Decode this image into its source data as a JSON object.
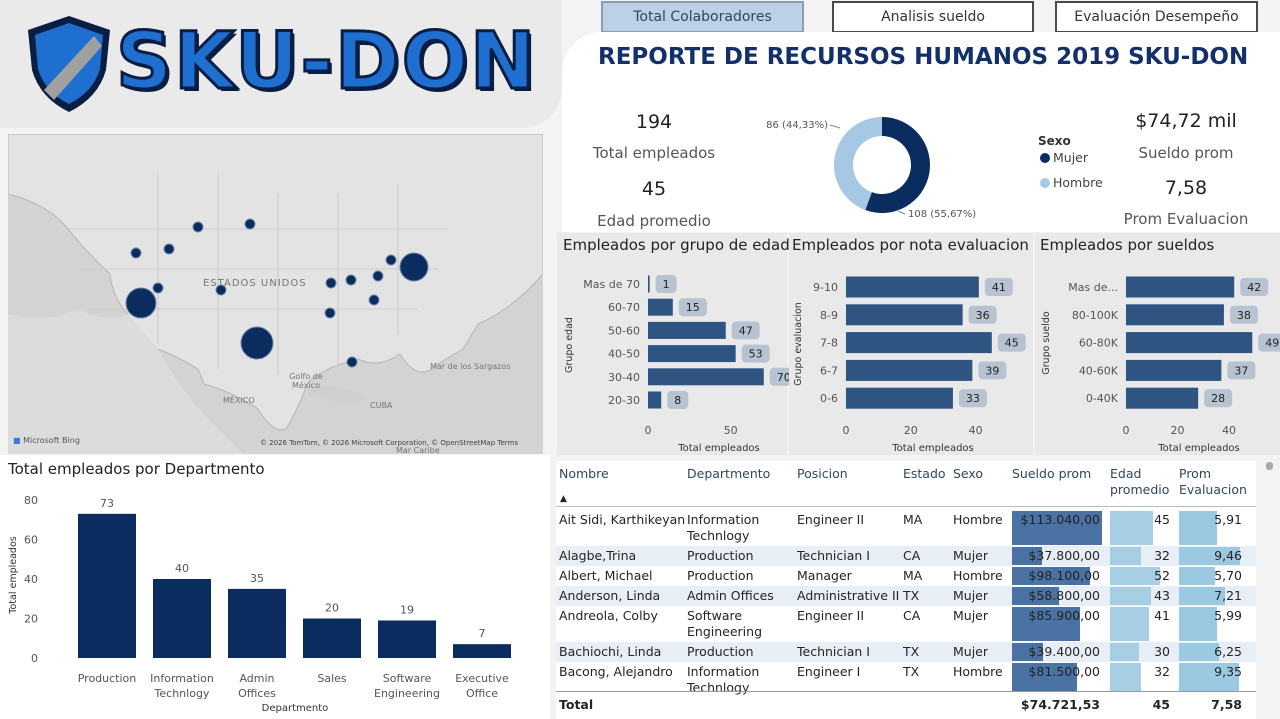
{
  "brand": {
    "logo_text": "SKU-DON"
  },
  "tabs": [
    "Total Colaboradores",
    "Analisis sueldo",
    "Evaluación Desempeño"
  ],
  "title": "REPORTE DE RECURSOS HUMANOS 2019 SKU-DON",
  "kpis": {
    "total_empleados": {
      "value": "194",
      "label": "Total empleados"
    },
    "edad_promedio": {
      "value": "45",
      "label": "Edad promedio"
    },
    "sueldo_prom": {
      "value": "$74,72 mil",
      "label": "Sueldo prom"
    },
    "prom_evaluacion": {
      "value": "7,58",
      "label": "Prom Evaluacion"
    }
  },
  "colors": {
    "dark": "#0b2c5f",
    "mid": "#2e5482",
    "light": "#a7c8e4",
    "light2": "#9bc9e2",
    "label_bg": "#b7c3d0"
  },
  "map": {
    "labels": [
      "ESTADOS UNIDOS",
      "Golfo de México",
      "MÉXICO",
      "CUBA",
      "Mar de los Sargazos",
      "Mar Caribe"
    ],
    "credit": "© 2026 TomTom, © 2026 Microsoft Corporation, © OpenStreetMap   Terms",
    "bing": "Microsoft Bing"
  },
  "chart_data": [
    {
      "id": "sexo",
      "type": "pie",
      "legend_title": "Sexo",
      "categories": [
        "Mujer",
        "Hombre"
      ],
      "values": [
        108,
        86
      ],
      "labels": [
        "108 (55,67%)",
        "86 (44,33%)"
      ],
      "colors": [
        "#0b2c5f",
        "#a7c8e4"
      ]
    },
    {
      "id": "edad",
      "type": "bar",
      "orientation": "horizontal",
      "title": "Empleados por grupo de edad",
      "ylabel": "Grupo edad",
      "xlabel": "Total empleados",
      "categories": [
        "Mas de 70",
        "60-70",
        "50-60",
        "40-50",
        "30-40",
        "20-30"
      ],
      "values": [
        1,
        15,
        47,
        53,
        70,
        8
      ],
      "ticks": [
        "0",
        "50"
      ],
      "xlim": [
        0,
        78
      ]
    },
    {
      "id": "nota",
      "type": "bar",
      "orientation": "horizontal",
      "title": "Empleados por nota evaluacion",
      "ylabel": "Grupo evaluacion",
      "xlabel": "Total empleados",
      "categories": [
        "9-10",
        "8-9",
        "7-8",
        "6-7",
        "0-6"
      ],
      "values": [
        41,
        36,
        45,
        39,
        33
      ],
      "ticks": [
        "0",
        "20",
        "40"
      ],
      "xlim": [
        0,
        50
      ]
    },
    {
      "id": "sueldo",
      "type": "bar",
      "orientation": "horizontal",
      "title": "Empleados por sueldos",
      "ylabel": "Grupo sueldo",
      "xlabel": "Total empleados",
      "categories": [
        "Mas de...",
        "80-100K",
        "60-80K",
        "40-60K",
        "0-40K"
      ],
      "values": [
        42,
        38,
        49,
        37,
        28
      ],
      "ticks": [
        "0",
        "20",
        "40"
      ],
      "xlim": [
        0,
        52
      ]
    },
    {
      "id": "dept",
      "type": "bar",
      "title": "Total empleados por Departmento",
      "ylabel": "Total empleados",
      "xlabel": "Departmento",
      "categories": [
        "Production",
        "Information Technlogy",
        "Admin Offices",
        "Sales",
        "Software Engineering",
        "Executive Office"
      ],
      "values": [
        73,
        40,
        35,
        20,
        19,
        7
      ],
      "ticks": [
        "0",
        "20",
        "40",
        "60",
        "80"
      ],
      "ylim": [
        0,
        80
      ]
    }
  ],
  "table": {
    "headers": [
      "Nombre",
      "Departmento",
      "Posicion",
      "Estado",
      "Sexo",
      "Sueldo prom",
      "Edad promedio",
      "Prom Evaluacion"
    ],
    "sort_indicator": "▲",
    "rows": [
      [
        "Ait Sidi, Karthikeyan",
        "Information Technlogy",
        "Engineer II",
        "MA",
        "Hombre",
        "$113.040,00",
        "45",
        "5,91"
      ],
      [
        "Alagbe,Trina",
        "Production",
        "Technician I",
        "CA",
        "Mujer",
        "$37.800,00",
        "32",
        "9,46"
      ],
      [
        "Albert, Michael",
        "Production",
        "Manager",
        "MA",
        "Hombre",
        "$98.100,00",
        "52",
        "5,70"
      ],
      [
        "Anderson, Linda",
        "Admin Offices",
        "Administrative II",
        "TX",
        "Mujer",
        "$58.800,00",
        "43",
        "7,21"
      ],
      [
        "Andreola, Colby",
        "Software Engineering",
        "Engineer II",
        "CA",
        "Mujer",
        "$85.900,00",
        "41",
        "5,99"
      ],
      [
        "Bachiochi, Linda",
        "Production",
        "Technician I",
        "TX",
        "Mujer",
        "$39.400,00",
        "30",
        "6,25"
      ],
      [
        "Bacong, Alejandro",
        "Information Technlogy",
        "Engineer I",
        "TX",
        "Hombre",
        "$81.500,00",
        "32",
        "9,35"
      ]
    ],
    "total": {
      "label": "Total",
      "sueldo": "$74.721,53",
      "edad": "45",
      "eval": "7,58"
    }
  }
}
